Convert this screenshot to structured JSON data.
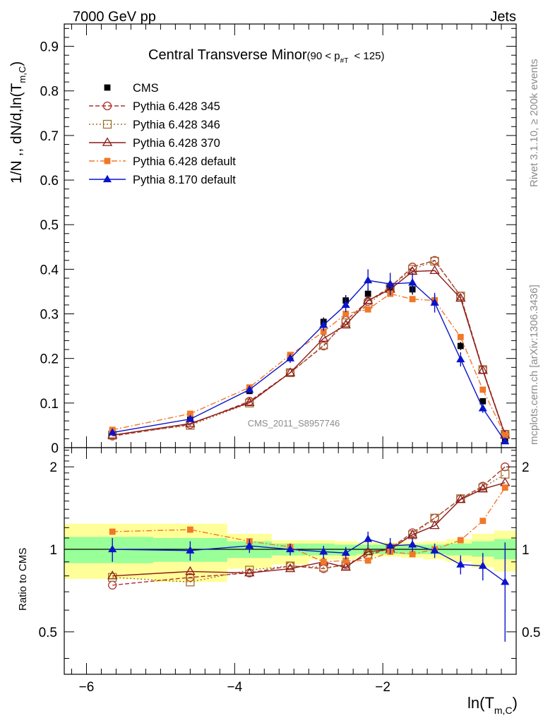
{
  "header": {
    "left": "7000 GeV pp",
    "right": "Jets"
  },
  "side_text": {
    "rivet": "Rivet 3.1.10, ≥ 200k events",
    "mcplots": "mcplots.cern.ch [arXiv:1306.3436]"
  },
  "chart_data": {
    "type": "line",
    "title": "Central Transverse Minor",
    "title_suffix": "(90 < p",
    "title_suffix_sub": "#T",
    "title_suffix_end": " < 125)",
    "watermark": "CMS_2011_S8957746",
    "xlabel": "ln(T",
    "xlabel_sub": "m,C",
    "xlabel_end": ")",
    "ylabel": "1/N ,, dN/d,ln(T",
    "ylabel_sub": "m,C",
    "ylabel_end": ")",
    "ratio_ylabel": "Ratio to CMS",
    "xlim": [
      -6.3,
      -0.2
    ],
    "ylim": [
      0,
      0.95
    ],
    "ratio_ylim": [
      0.35,
      2.35
    ],
    "x_ticks": [
      "−6",
      "−4",
      "−2"
    ],
    "x_tick_values": [
      -6,
      -4,
      -2
    ],
    "y_ticks": [
      "0",
      "0.1",
      "0.2",
      "0.3",
      "0.4",
      "0.5",
      "0.6",
      "0.7",
      "0.8",
      "0.9"
    ],
    "y_tick_values": [
      0,
      0.1,
      0.2,
      0.3,
      0.4,
      0.5,
      0.6,
      0.7,
      0.8,
      0.9
    ],
    "ratio_ticks": [
      "0.5",
      "1",
      "2"
    ],
    "ratio_tick_values": [
      0.5,
      1,
      2
    ],
    "x": [
      -5.65,
      -4.6,
      -3.8,
      -3.25,
      -2.8,
      -2.5,
      -2.2,
      -1.9,
      -1.6,
      -1.3,
      -0.95,
      -0.65,
      -0.35
    ],
    "bin_edges": [
      -6.3,
      -5.1,
      -4.1,
      -3.5,
      -3.0,
      -2.65,
      -2.35,
      -2.05,
      -1.75,
      -1.45,
      -1.15,
      -0.8,
      -0.5,
      -0.2
    ],
    "series": [
      {
        "name": "CMS",
        "style": "data",
        "values": [
          0.035,
          0.065,
          0.127,
          0.204,
          0.282,
          0.33,
          0.345,
          0.357,
          0.355,
          0.33,
          0.228,
          0.104,
          0.018
        ],
        "errors": [
          0.003,
          0.004,
          0.006,
          0.008,
          0.01,
          0.012,
          0.012,
          0.012,
          0.012,
          0.012,
          0.009,
          0.005,
          0.002
        ]
      },
      {
        "name": "Pythia 6.428 345",
        "style": "circle-dash",
        "color": "#b03030",
        "values": [
          0.026,
          0.052,
          0.104,
          0.168,
          0.228,
          0.285,
          0.328,
          0.36,
          0.405,
          0.42,
          0.34,
          0.175,
          0.03
        ]
      },
      {
        "name": "Pythia 6.428 346",
        "style": "square-dot",
        "color": "#a07030",
        "values": [
          0.028,
          0.05,
          0.1,
          0.168,
          0.23,
          0.28,
          0.322,
          0.36,
          0.4,
          0.418,
          0.34,
          0.175,
          0.03
        ]
      },
      {
        "name": "Pythia 6.428 370",
        "style": "triangle-solid",
        "color": "#8b1a1a",
        "values": [
          0.028,
          0.054,
          0.101,
          0.168,
          0.245,
          0.275,
          0.33,
          0.355,
          0.395,
          0.397,
          0.335,
          0.173,
          0.028
        ]
      },
      {
        "name": "Pythia 6.428 default",
        "style": "fsquare-dashdot",
        "color": "#f07828",
        "values": [
          0.04,
          0.076,
          0.135,
          0.208,
          0.26,
          0.3,
          0.31,
          0.345,
          0.333,
          0.33,
          0.248,
          0.13,
          0.028
        ]
      },
      {
        "name": "Pythia 8.170 default",
        "style": "ftriangle-solid",
        "color": "#0a14c8",
        "values": [
          0.034,
          0.064,
          0.13,
          0.2,
          0.275,
          0.32,
          0.375,
          0.367,
          0.37,
          0.325,
          0.198,
          0.088,
          0.014
        ],
        "errors": [
          0.004,
          0.005,
          0.007,
          0.01,
          0.013,
          0.016,
          0.025,
          0.025,
          0.022,
          0.022,
          0.016,
          0.01,
          0.006
        ]
      }
    ],
    "ratio_band": {
      "stat_lo": [
        0.89,
        0.9,
        0.93,
        0.95,
        0.95,
        0.95,
        0.96,
        0.96,
        0.96,
        0.96,
        0.95,
        0.94,
        0.92
      ],
      "stat_hi": [
        1.11,
        1.1,
        1.07,
        1.05,
        1.05,
        1.04,
        1.04,
        1.04,
        1.04,
        1.04,
        1.05,
        1.07,
        1.09
      ],
      "tot_lo": [
        0.78,
        0.76,
        0.85,
        0.88,
        0.92,
        0.92,
        0.94,
        0.94,
        0.93,
        0.92,
        0.9,
        0.86,
        0.83
      ],
      "tot_hi": [
        1.24,
        1.24,
        1.14,
        1.08,
        1.08,
        1.07,
        1.06,
        1.06,
        1.06,
        1.07,
        1.09,
        1.14,
        1.17
      ]
    },
    "ratios": [
      {
        "name": "Pythia 6.428 345",
        "values": [
          0.74,
          0.79,
          0.82,
          0.87,
          0.85,
          0.88,
          0.95,
          1.01,
          1.15,
          1.3,
          1.53,
          1.7,
          2.0
        ]
      },
      {
        "name": "Pythia 6.428 346",
        "values": [
          0.79,
          0.76,
          0.84,
          0.87,
          0.86,
          0.87,
          0.96,
          1.01,
          1.13,
          1.3,
          1.53,
          1.68,
          1.88
        ]
      },
      {
        "name": "Pythia 6.428 370",
        "values": [
          0.8,
          0.83,
          0.82,
          0.85,
          0.9,
          0.86,
          0.98,
          1.0,
          1.13,
          1.22,
          1.52,
          1.66,
          1.75
        ]
      },
      {
        "name": "Pythia 6.428 default",
        "values": [
          1.16,
          1.18,
          1.07,
          1.02,
          0.9,
          0.91,
          0.91,
          0.98,
          0.96,
          1.0,
          1.08,
          1.27,
          1.68
        ]
      },
      {
        "name": "Pythia 8.170 default",
        "values": [
          1.0,
          0.99,
          1.03,
          1.0,
          0.98,
          0.97,
          1.09,
          1.03,
          1.04,
          0.99,
          0.88,
          0.87,
          0.76
        ],
        "errors": [
          0.1,
          0.08,
          0.06,
          0.05,
          0.05,
          0.05,
          0.07,
          0.07,
          0.06,
          0.06,
          0.07,
          0.1,
          0.3
        ]
      }
    ]
  }
}
